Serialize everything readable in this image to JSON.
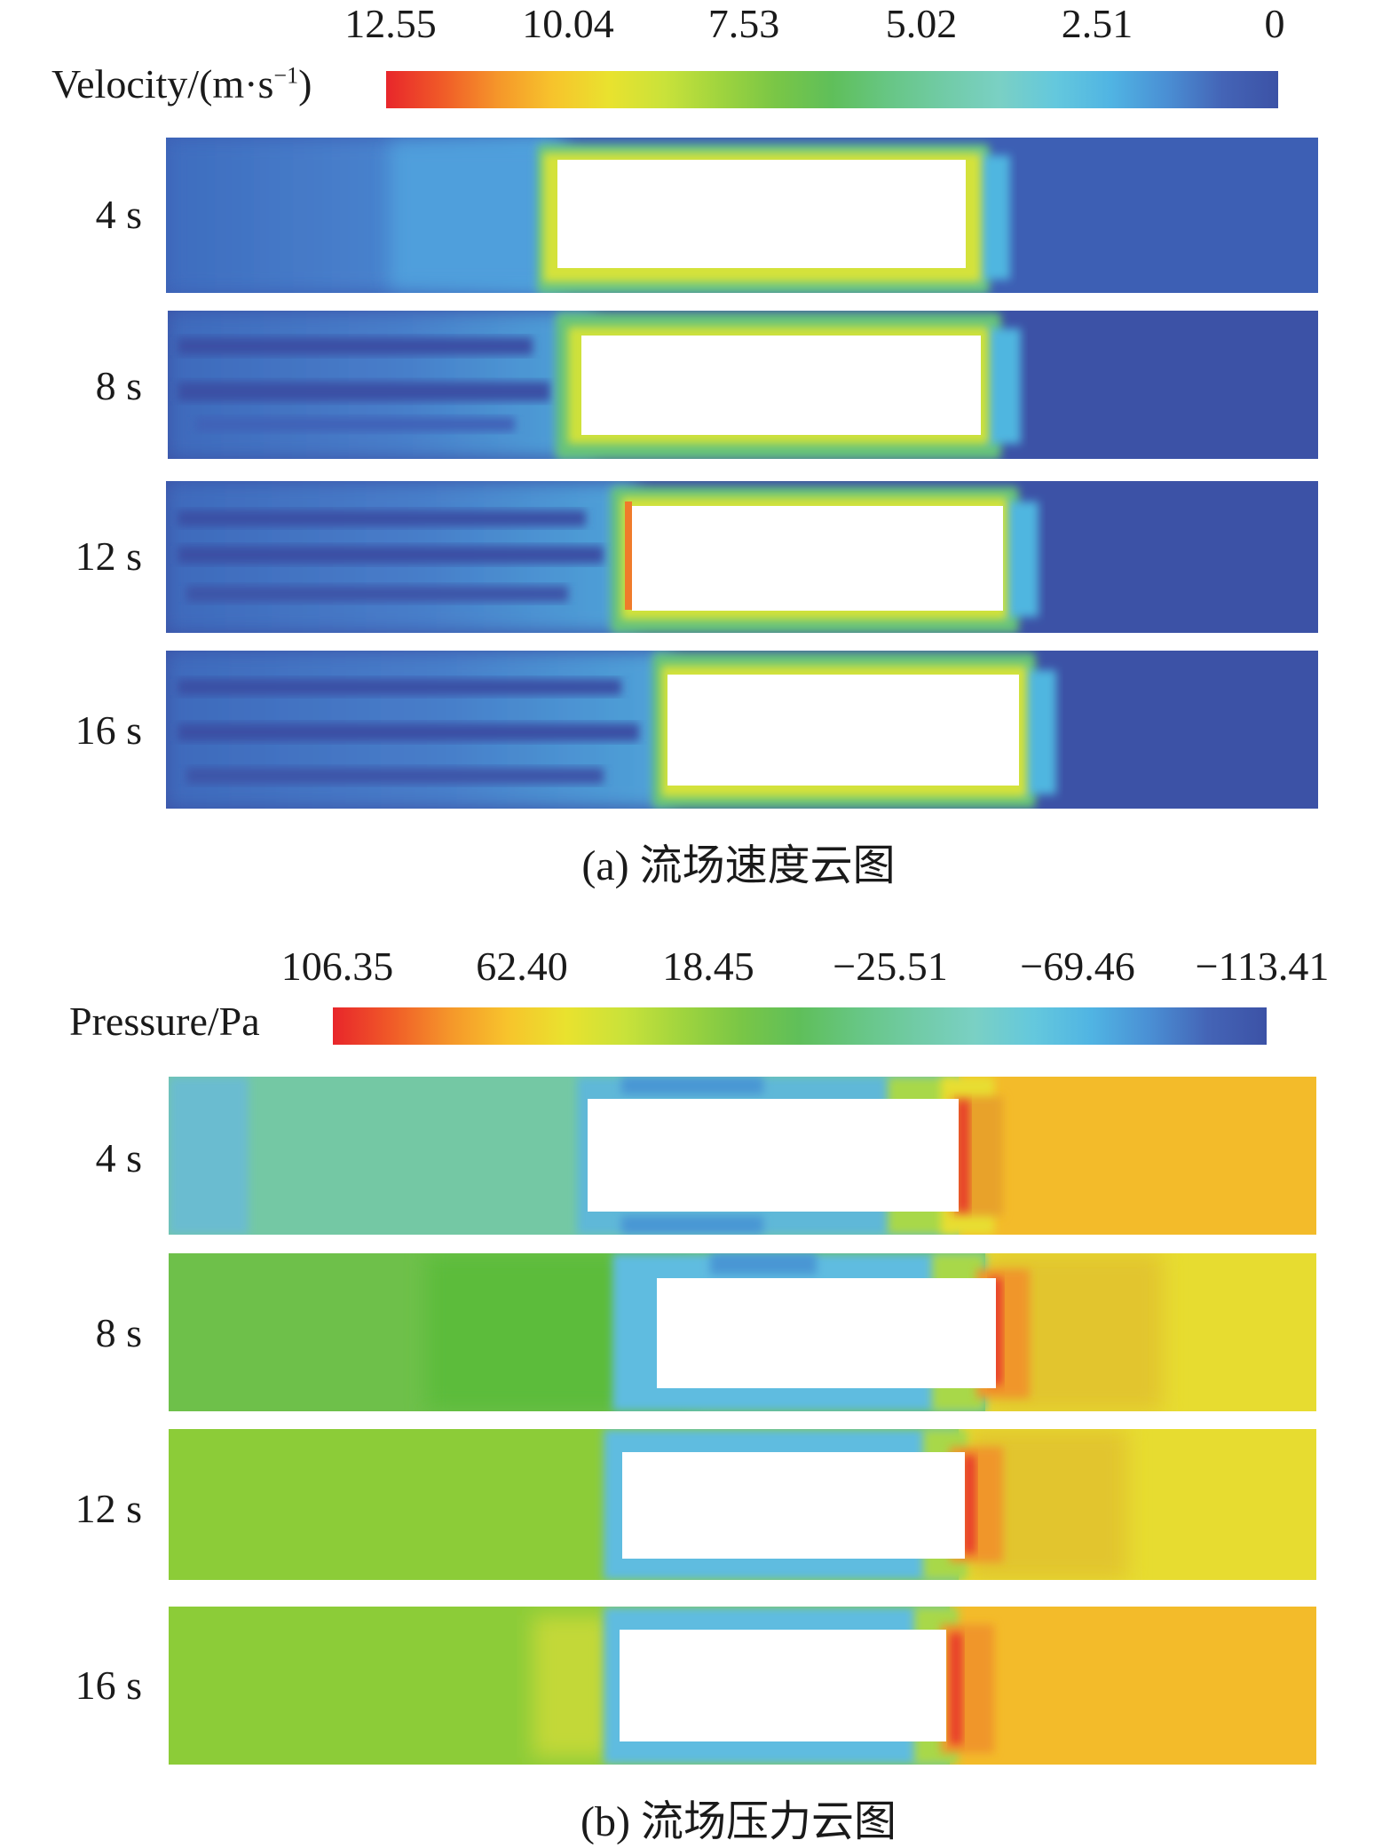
{
  "panel_a": {
    "colorbar": {
      "label_main": "Velocity/(m·s",
      "label_sup": "−1",
      "label_end": ")",
      "ticks": [
        "12.55",
        "10.04",
        "7.53",
        "5.02",
        "2.51",
        "0"
      ],
      "colors": [
        "#e8262b",
        "#f05a28",
        "#f5962a",
        "#f7c42c",
        "#e9e22e",
        "#c9e23a",
        "#9fd43e",
        "#79c646",
        "#5fbf5a",
        "#67c684",
        "#71cba6",
        "#7ad0c4",
        "#64c8dd",
        "#50b4e3",
        "#4a8fd4",
        "#4464b6",
        "#3c52a6"
      ]
    },
    "rows": [
      {
        "label": "4 s"
      },
      {
        "label": "8 s"
      },
      {
        "label": "12 s"
      },
      {
        "label": "16 s"
      }
    ],
    "caption": "(a) 流场速度云图"
  },
  "panel_b": {
    "colorbar": {
      "label": "Pressure/Pa",
      "ticks": [
        "106.35",
        "62.40",
        "18.45",
        "−25.51",
        "−69.46",
        "−113.41"
      ],
      "colors": [
        "#e8262b",
        "#f05a28",
        "#f5962a",
        "#f7c42c",
        "#e9e22e",
        "#c9e23a",
        "#9fd43e",
        "#79c646",
        "#5fbf5a",
        "#67c684",
        "#71cba6",
        "#7ad0c4",
        "#64c8dd",
        "#50b4e3",
        "#4a8fd4",
        "#4464b6",
        "#3c52a6"
      ]
    },
    "rows": [
      {
        "label": "4 s"
      },
      {
        "label": "8 s"
      },
      {
        "label": "12 s"
      },
      {
        "label": "16 s"
      }
    ],
    "caption": "(b) 流场压力云图"
  }
}
